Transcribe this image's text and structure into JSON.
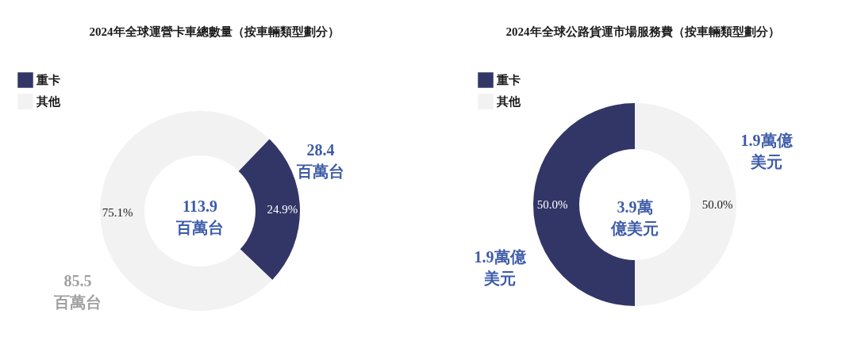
{
  "chart_data": [
    {
      "type": "donut",
      "title": "2024年全球運營卡車總數量（按車輛類型劃分）",
      "categories": [
        "重卡",
        "其他"
      ],
      "values": [
        24.9,
        75.1
      ],
      "colors": [
        "#323667",
        "#f2f2f2"
      ],
      "value_labels": [
        "24.9%",
        "75.1%"
      ],
      "legend": "top left",
      "annotations": [
        "28.4\n百萬台",
        "113.9\n百萬台",
        "85.5\n百萬台"
      ]
    },
    {
      "type": "donut",
      "title": "2024年全球公路貨運市場服務費（按車輛類型劃分）",
      "categories": [
        "重卡",
        "其他"
      ],
      "values": [
        50.0,
        50.0
      ],
      "colors": [
        "#323667",
        "#f2f2f2"
      ],
      "value_labels": [
        "50.0%",
        "50.0%"
      ],
      "legend": "top left",
      "annotations": [
        "1.9萬億美元",
        "3.9萬億美元",
        "1.9萬億美元"
      ]
    }
  ]
}
